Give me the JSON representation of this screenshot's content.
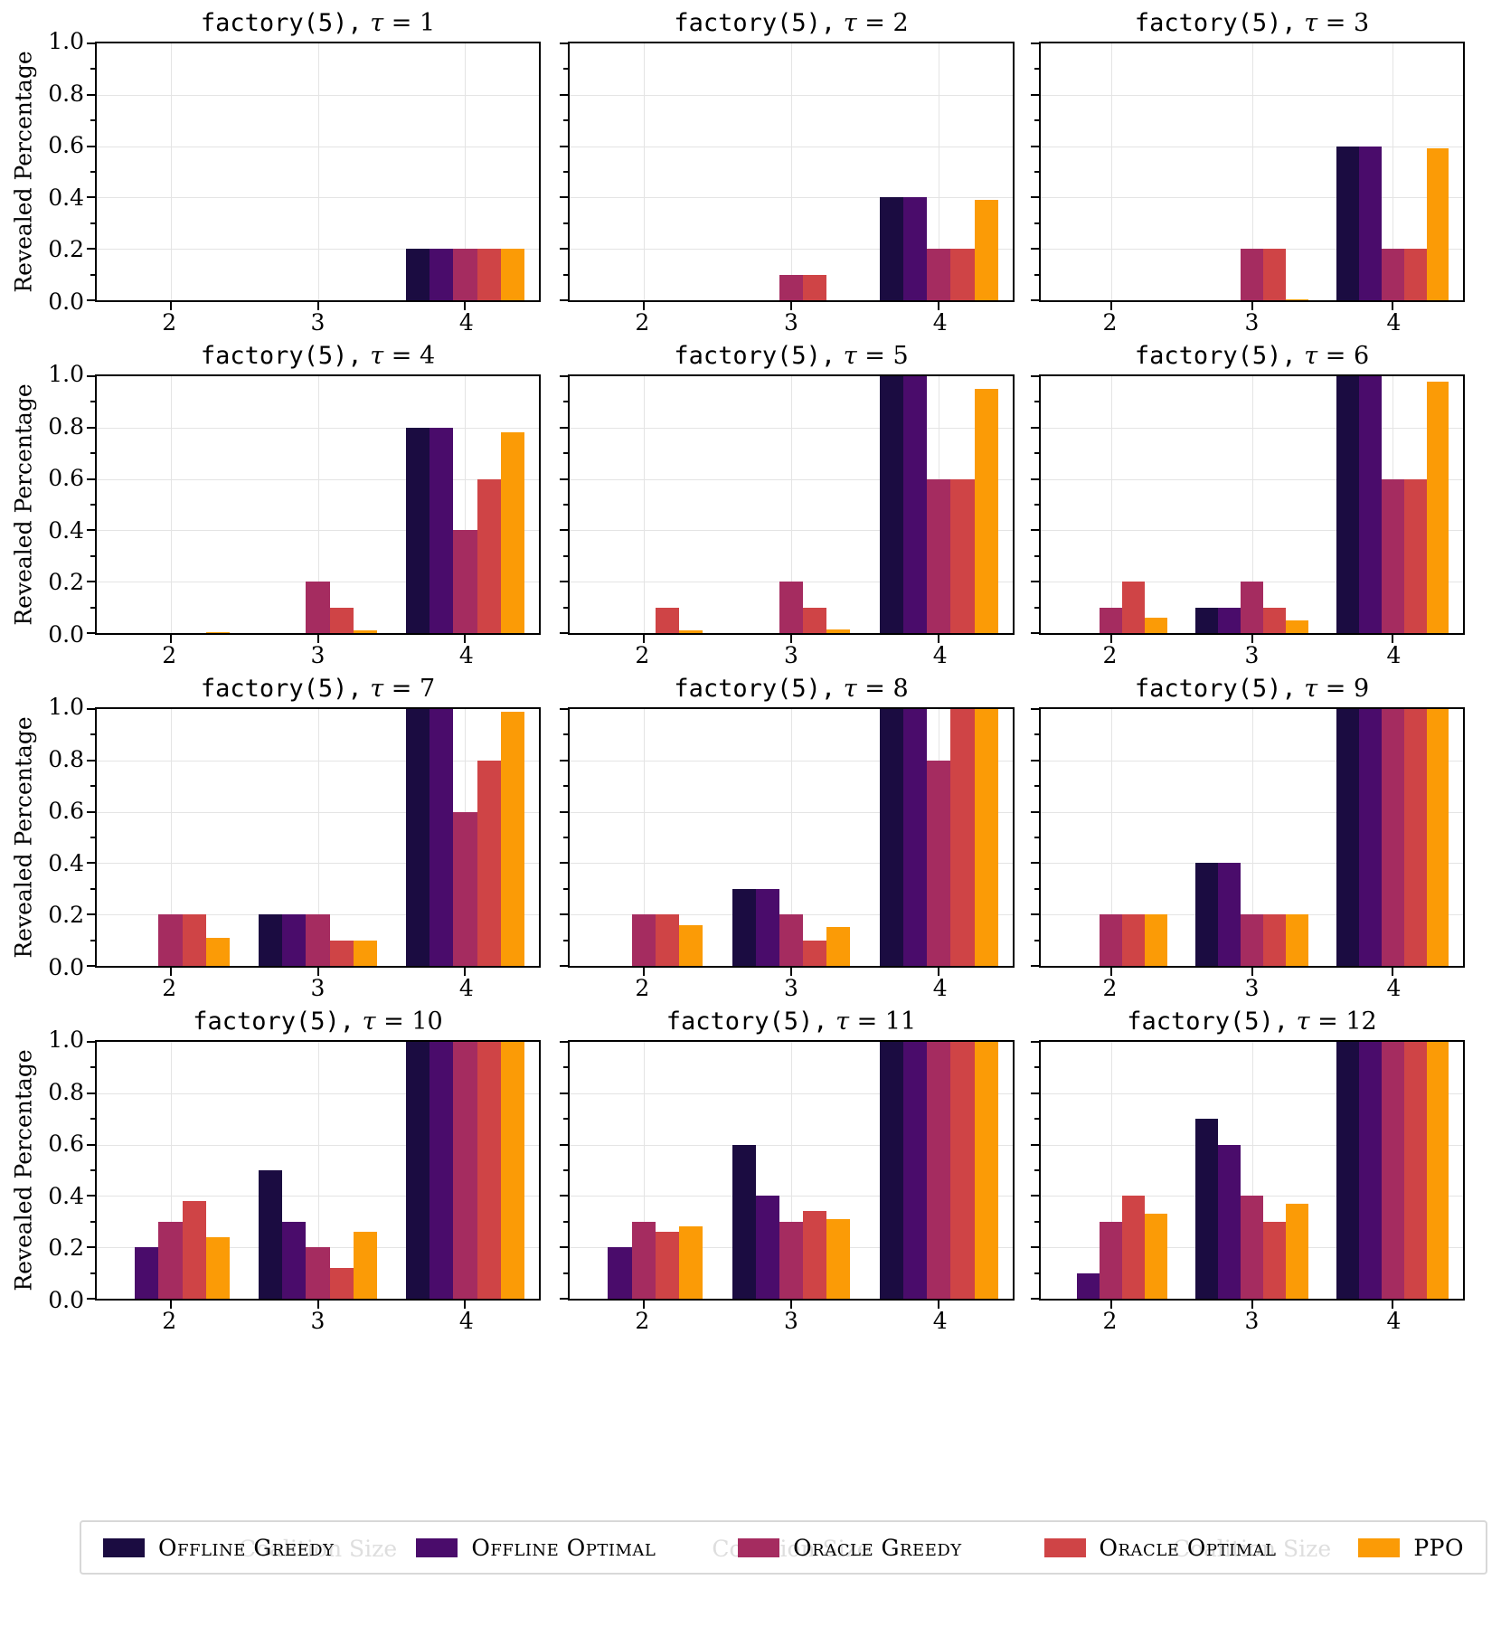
{
  "chart_data": {
    "type": "bar",
    "layout": {
      "rows": 4,
      "cols": 3,
      "grid": true,
      "legend_position": "bottom",
      "shared_y": true
    },
    "categories": [
      "2",
      "3",
      "4"
    ],
    "xlabel": "Coalition Size",
    "ylabel": "Revealed Percentage",
    "ylim": [
      0,
      1
    ],
    "y_ticks": [
      "1.0",
      "0.8",
      "0.6",
      "0.4",
      "0.2",
      "0.0"
    ],
    "series_names": [
      "Offline Greedy",
      "Offline Optimal",
      "Oracle Greedy",
      "Oracle Optimal",
      "PPO"
    ],
    "series_colors": [
      "#1b0c41",
      "#4a0c6b",
      "#a52c60",
      "#cf4446",
      "#fb9b06"
    ],
    "subplots": [
      {
        "title": "factory(5), τ = 1",
        "title_code": "factory(5),",
        "title_tau": "τ = 1",
        "series": [
          {
            "name": "Offline Greedy",
            "values": [
              0,
              0,
              0.2
            ]
          },
          {
            "name": "Offline Optimal",
            "values": [
              0,
              0,
              0.2
            ]
          },
          {
            "name": "Oracle Greedy",
            "values": [
              0,
              0,
              0.2
            ]
          },
          {
            "name": "Oracle Optimal",
            "values": [
              0,
              0,
              0.2
            ]
          },
          {
            "name": "PPO",
            "values": [
              0,
              0,
              0.2
            ]
          }
        ]
      },
      {
        "title": "factory(5), τ = 2",
        "title_code": "factory(5),",
        "title_tau": "τ = 2",
        "series": [
          {
            "name": "Offline Greedy",
            "values": [
              0,
              0,
              0.4
            ]
          },
          {
            "name": "Offline Optimal",
            "values": [
              0,
              0,
              0.4
            ]
          },
          {
            "name": "Oracle Greedy",
            "values": [
              0,
              0.1,
              0.2
            ]
          },
          {
            "name": "Oracle Optimal",
            "values": [
              0,
              0.1,
              0.2
            ]
          },
          {
            "name": "PPO",
            "values": [
              0,
              0,
              0.39
            ]
          }
        ]
      },
      {
        "title": "factory(5), τ = 3",
        "title_code": "factory(5),",
        "title_tau": "τ = 3",
        "series": [
          {
            "name": "Offline Greedy",
            "values": [
              0,
              0,
              0.6
            ]
          },
          {
            "name": "Offline Optimal",
            "values": [
              0,
              0,
              0.6
            ]
          },
          {
            "name": "Oracle Greedy",
            "values": [
              0,
              0.2,
              0.2
            ]
          },
          {
            "name": "Oracle Optimal",
            "values": [
              0,
              0.2,
              0.2
            ]
          },
          {
            "name": "PPO",
            "values": [
              0,
              0.005,
              0.59
            ]
          }
        ]
      },
      {
        "title": "factory(5), τ = 4",
        "title_code": "factory(5),",
        "title_tau": "τ = 4",
        "series": [
          {
            "name": "Offline Greedy",
            "values": [
              0,
              0,
              0.8
            ]
          },
          {
            "name": "Offline Optimal",
            "values": [
              0,
              0,
              0.8
            ]
          },
          {
            "name": "Oracle Greedy",
            "values": [
              0,
              0.2,
              0.4
            ]
          },
          {
            "name": "Oracle Optimal",
            "values": [
              0,
              0.1,
              0.6
            ]
          },
          {
            "name": "PPO",
            "values": [
              0.005,
              0.01,
              0.78
            ]
          }
        ]
      },
      {
        "title": "factory(5), τ = 5",
        "title_code": "factory(5),",
        "title_tau": "τ = 5",
        "series": [
          {
            "name": "Offline Greedy",
            "values": [
              0,
              0,
              1.0
            ]
          },
          {
            "name": "Offline Optimal",
            "values": [
              0,
              0,
              1.0
            ]
          },
          {
            "name": "Oracle Greedy",
            "values": [
              0,
              0.2,
              0.6
            ]
          },
          {
            "name": "Oracle Optimal",
            "values": [
              0.1,
              0.1,
              0.6
            ]
          },
          {
            "name": "PPO",
            "values": [
              0.01,
              0.015,
              0.95
            ]
          }
        ]
      },
      {
        "title": "factory(5), τ = 6",
        "title_code": "factory(5),",
        "title_tau": "τ = 6",
        "series": [
          {
            "name": "Offline Greedy",
            "values": [
              0,
              0.1,
              1.0
            ]
          },
          {
            "name": "Offline Optimal",
            "values": [
              0,
              0.1,
              1.0
            ]
          },
          {
            "name": "Oracle Greedy",
            "values": [
              0.1,
              0.2,
              0.6
            ]
          },
          {
            "name": "Oracle Optimal",
            "values": [
              0.2,
              0.1,
              0.6
            ]
          },
          {
            "name": "PPO",
            "values": [
              0.06,
              0.05,
              0.98
            ]
          }
        ]
      },
      {
        "title": "factory(5), τ = 7",
        "title_code": "factory(5),",
        "title_tau": "τ = 7",
        "series": [
          {
            "name": "Offline Greedy",
            "values": [
              0,
              0.2,
              1.0
            ]
          },
          {
            "name": "Offline Optimal",
            "values": [
              0,
              0.2,
              1.0
            ]
          },
          {
            "name": "Oracle Greedy",
            "values": [
              0.2,
              0.2,
              0.6
            ]
          },
          {
            "name": "Oracle Optimal",
            "values": [
              0.2,
              0.1,
              0.8
            ]
          },
          {
            "name": "PPO",
            "values": [
              0.11,
              0.1,
              0.99
            ]
          }
        ]
      },
      {
        "title": "factory(5), τ = 8",
        "title_code": "factory(5),",
        "title_tau": "τ = 8",
        "series": [
          {
            "name": "Offline Greedy",
            "values": [
              0,
              0.3,
              1.0
            ]
          },
          {
            "name": "Offline Optimal",
            "values": [
              0,
              0.3,
              1.0
            ]
          },
          {
            "name": "Oracle Greedy",
            "values": [
              0.2,
              0.2,
              0.8
            ]
          },
          {
            "name": "Oracle Optimal",
            "values": [
              0.2,
              0.1,
              1.0
            ]
          },
          {
            "name": "PPO",
            "values": [
              0.16,
              0.15,
              1.0
            ]
          }
        ]
      },
      {
        "title": "factory(5), τ = 9",
        "title_code": "factory(5),",
        "title_tau": "τ = 9",
        "series": [
          {
            "name": "Offline Greedy",
            "values": [
              0,
              0.4,
              1.0
            ]
          },
          {
            "name": "Offline Optimal",
            "values": [
              0,
              0.4,
              1.0
            ]
          },
          {
            "name": "Oracle Greedy",
            "values": [
              0.2,
              0.2,
              1.0
            ]
          },
          {
            "name": "Oracle Optimal",
            "values": [
              0.2,
              0.2,
              1.0
            ]
          },
          {
            "name": "PPO",
            "values": [
              0.2,
              0.2,
              1.0
            ]
          }
        ]
      },
      {
        "title": "factory(5), τ = 10",
        "title_code": "factory(5),",
        "title_tau": "τ = 10",
        "series": [
          {
            "name": "Offline Greedy",
            "values": [
              0,
              0.5,
              1.0
            ]
          },
          {
            "name": "Offline Optimal",
            "values": [
              0.2,
              0.3,
              1.0
            ]
          },
          {
            "name": "Oracle Greedy",
            "values": [
              0.3,
              0.2,
              1.0
            ]
          },
          {
            "name": "Oracle Optimal",
            "values": [
              0.38,
              0.12,
              1.0
            ]
          },
          {
            "name": "PPO",
            "values": [
              0.24,
              0.26,
              1.0
            ]
          }
        ]
      },
      {
        "title": "factory(5), τ = 11",
        "title_code": "factory(5),",
        "title_tau": "τ = 11",
        "series": [
          {
            "name": "Offline Greedy",
            "values": [
              0,
              0.6,
              1.0
            ]
          },
          {
            "name": "Offline Optimal",
            "values": [
              0.2,
              0.4,
              1.0
            ]
          },
          {
            "name": "Oracle Greedy",
            "values": [
              0.3,
              0.3,
              1.0
            ]
          },
          {
            "name": "Oracle Optimal",
            "values": [
              0.26,
              0.34,
              1.0
            ]
          },
          {
            "name": "PPO",
            "values": [
              0.28,
              0.31,
              1.0
            ]
          }
        ]
      },
      {
        "title": "factory(5), τ = 12",
        "title_code": "factory(5),",
        "title_tau": "τ = 12",
        "series": [
          {
            "name": "Offline Greedy",
            "values": [
              0,
              0.7,
              1.0
            ]
          },
          {
            "name": "Offline Optimal",
            "values": [
              0.1,
              0.6,
              1.0
            ]
          },
          {
            "name": "Oracle Greedy",
            "values": [
              0.3,
              0.4,
              1.0
            ]
          },
          {
            "name": "Oracle Optimal",
            "values": [
              0.4,
              0.3,
              1.0
            ]
          },
          {
            "name": "PPO",
            "values": [
              0.33,
              0.37,
              1.0
            ]
          }
        ]
      }
    ]
  },
  "legend": {
    "entries": [
      {
        "label": "Offline Greedy",
        "color": "#1b0c41"
      },
      {
        "label": "Offline Optimal",
        "color": "#4a0c6b"
      },
      {
        "label": "Oracle Greedy",
        "color": "#a52c60"
      },
      {
        "label": "Oracle Optimal",
        "color": "#cf4446"
      },
      {
        "label": "PPO",
        "color": "#fb9b06"
      }
    ]
  }
}
